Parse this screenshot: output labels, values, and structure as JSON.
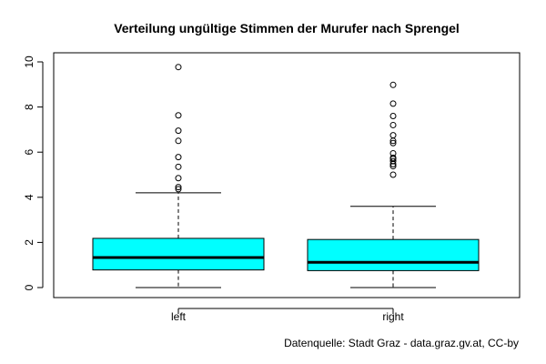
{
  "chart_data": {
    "type": "boxplot",
    "title": "Verteilung ungültige Stimmen der Murufer nach Sprengel",
    "xlabel": "",
    "ylabel": "",
    "ylim": [
      0,
      10
    ],
    "yticks": [
      "0",
      "2",
      "4",
      "6",
      "8",
      "10"
    ],
    "grid": false,
    "colors": {
      "box_fill": "#00ffff",
      "stroke": "#000000"
    },
    "categories": [
      "left",
      "right"
    ],
    "boxes": [
      {
        "category": "left",
        "whisker_low": 0,
        "q1": 0.78,
        "median": 1.33,
        "q3": 2.18,
        "whisker_high": 4.2,
        "outliers": [
          4.36,
          4.45,
          4.85,
          5.35,
          5.78,
          6.5,
          6.95,
          7.63,
          9.77
        ]
      },
      {
        "category": "right",
        "whisker_low": 0,
        "q1": 0.75,
        "median": 1.12,
        "q3": 2.13,
        "whisker_high": 3.6,
        "outliers": [
          5.0,
          5.38,
          5.47,
          5.6,
          5.7,
          5.75,
          5.95,
          6.4,
          6.5,
          6.75,
          7.2,
          7.6,
          8.15,
          8.98
        ]
      }
    ],
    "source": "Datenquelle: Stadt Graz - data.graz.gv.at, CC-by"
  }
}
